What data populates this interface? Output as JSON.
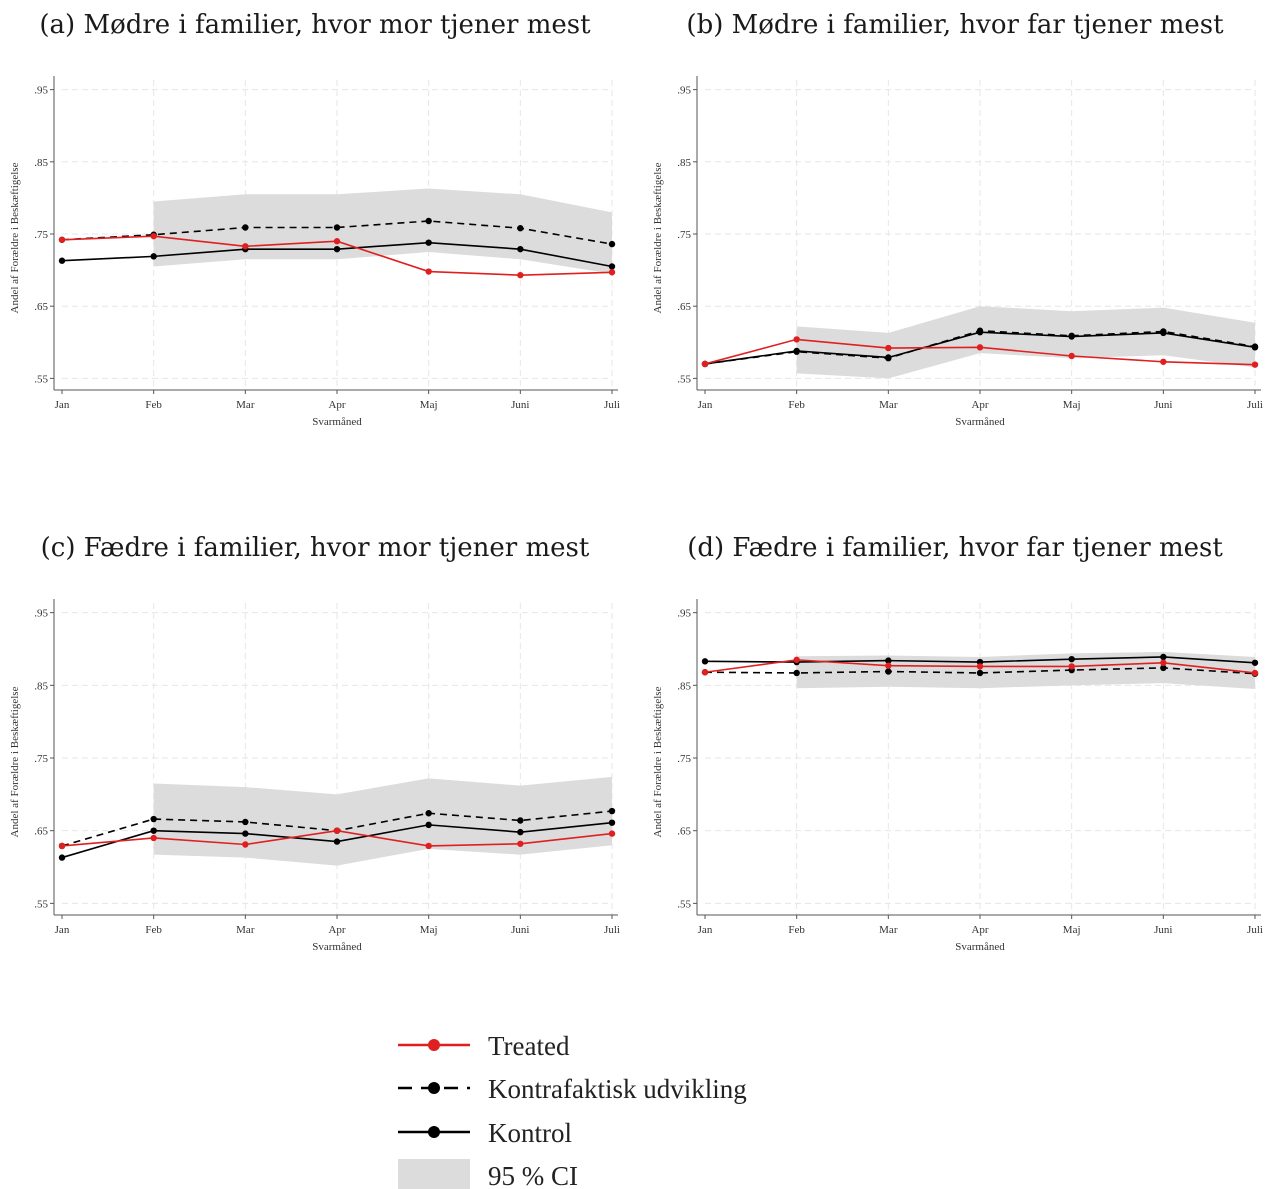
{
  "colors": {
    "treated": "#e02020",
    "counterfactual": "#000000",
    "kontrol": "#000000",
    "ci": "#dcdcdc",
    "grid": "#e6e6e6"
  },
  "legend": {
    "items": [
      {
        "key": "treated",
        "label": "Treated"
      },
      {
        "key": "counterfactual",
        "label": "Kontrafaktisk udvikling"
      },
      {
        "key": "kontrol",
        "label": "Kontrol"
      },
      {
        "key": "ci",
        "label": "95 % CI"
      }
    ]
  },
  "chart_data": [
    {
      "type": "line",
      "title": "(a) Mødre i familier, hvor mor tjener mest",
      "xlabel": "Svarmåned",
      "ylabel": "Andel af Forældre i Beskæftigelse",
      "categories": [
        "Jan",
        "Feb",
        "Mar",
        "Apr",
        "Maj",
        "Juni",
        "Juli"
      ],
      "yticks": [
        ".55",
        ".65",
        ".75",
        ".85",
        ".95"
      ],
      "ylim": [
        0.545,
        0.955
      ],
      "grid": true,
      "series": [
        {
          "key": "treated",
          "name": "Treated",
          "values": [
            0.742,
            0.747,
            0.733,
            0.74,
            0.698,
            0.693,
            0.697
          ]
        },
        {
          "key": "counterfactual",
          "name": "Kontrafaktisk udvikling",
          "values": [
            0.742,
            0.749,
            0.759,
            0.759,
            0.768,
            0.758,
            0.736
          ]
        },
        {
          "key": "kontrol",
          "name": "Kontrol",
          "values": [
            0.713,
            0.719,
            0.729,
            0.729,
            0.738,
            0.729,
            0.705
          ]
        }
      ],
      "ci": {
        "lower": [
          null,
          0.705,
          0.715,
          0.715,
          0.725,
          0.715,
          0.695
        ],
        "upper": [
          null,
          0.795,
          0.805,
          0.805,
          0.813,
          0.805,
          0.78
        ]
      }
    },
    {
      "type": "line",
      "title": "(b) Mødre i familier, hvor far tjener mest",
      "xlabel": "Svarmåned",
      "ylabel": "Andel af Forældre i Beskæftigelse",
      "categories": [
        "Jan",
        "Feb",
        "Mar",
        "Apr",
        "Maj",
        "Juni",
        "Juli"
      ],
      "yticks": [
        ".55",
        ".65",
        ".75",
        ".85",
        ".95"
      ],
      "ylim": [
        0.545,
        0.955
      ],
      "grid": true,
      "series": [
        {
          "key": "treated",
          "name": "Treated",
          "values": [
            0.57,
            0.604,
            0.592,
            0.593,
            0.581,
            0.573,
            0.569
          ]
        },
        {
          "key": "counterfactual",
          "name": "Kontrafaktisk udvikling",
          "values": [
            0.57,
            0.587,
            0.578,
            0.616,
            0.609,
            0.615,
            0.594
          ]
        },
        {
          "key": "kontrol",
          "name": "Kontrol",
          "values": [
            0.57,
            0.588,
            0.579,
            0.614,
            0.608,
            0.613,
            0.593
          ]
        }
      ],
      "ci": {
        "lower": [
          null,
          0.557,
          0.55,
          0.585,
          0.578,
          0.582,
          0.565
        ],
        "upper": [
          null,
          0.622,
          0.613,
          0.65,
          0.643,
          0.648,
          0.627
        ]
      }
    },
    {
      "type": "line",
      "title": "(c) Fædre i familier, hvor mor tjener mest",
      "xlabel": "Svarmåned",
      "ylabel": "Andel af Forældre i Beskæftigelse",
      "categories": [
        "Jan",
        "Feb",
        "Mar",
        "Apr",
        "Maj",
        "Juni",
        "Juli"
      ],
      "yticks": [
        ".55",
        ".65",
        ".75",
        ".85",
        ".95"
      ],
      "ylim": [
        0.545,
        0.955
      ],
      "grid": true,
      "series": [
        {
          "key": "treated",
          "name": "Treated",
          "values": [
            0.629,
            0.64,
            0.631,
            0.65,
            0.629,
            0.632,
            0.646
          ]
        },
        {
          "key": "counterfactual",
          "name": "Kontrafaktisk udvikling",
          "values": [
            0.629,
            0.666,
            0.662,
            0.65,
            0.674,
            0.664,
            0.677
          ]
        },
        {
          "key": "kontrol",
          "name": "Kontrol",
          "values": [
            0.613,
            0.65,
            0.646,
            0.635,
            0.658,
            0.648,
            0.661
          ]
        }
      ],
      "ci": {
        "lower": [
          null,
          0.617,
          0.613,
          0.602,
          0.625,
          0.617,
          0.63
        ],
        "upper": [
          null,
          0.715,
          0.71,
          0.7,
          0.722,
          0.712,
          0.724
        ]
      }
    },
    {
      "type": "line",
      "title": "(d) Fædre i familier, hvor far tjener mest",
      "xlabel": "Svarmåned",
      "ylabel": "Andel af Forældre i Beskæftigelse",
      "categories": [
        "Jan",
        "Feb",
        "Mar",
        "Apr",
        "Maj",
        "Juni",
        "Juli"
      ],
      "yticks": [
        ".55",
        ".65",
        ".75",
        ".85",
        ".95"
      ],
      "ylim": [
        0.545,
        0.955
      ],
      "grid": true,
      "series": [
        {
          "key": "treated",
          "name": "Treated",
          "values": [
            0.868,
            0.885,
            0.877,
            0.876,
            0.876,
            0.881,
            0.867
          ]
        },
        {
          "key": "counterfactual",
          "name": "Kontrafaktisk udvikling",
          "values": [
            0.868,
            0.867,
            0.869,
            0.867,
            0.871,
            0.874,
            0.866
          ]
        },
        {
          "key": "kontrol",
          "name": "Kontrol",
          "values": [
            0.883,
            0.882,
            0.884,
            0.882,
            0.886,
            0.889,
            0.881
          ]
        }
      ],
      "ci": {
        "lower": [
          null,
          0.846,
          0.848,
          0.846,
          0.85,
          0.853,
          0.845
        ],
        "upper": [
          null,
          0.89,
          0.891,
          0.889,
          0.894,
          0.896,
          0.889
        ]
      }
    }
  ]
}
